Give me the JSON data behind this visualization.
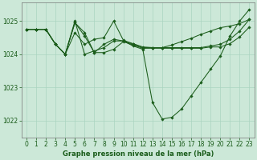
{
  "title": "Graphe pression niveau de la mer (hPa)",
  "background_color": "#cce8d8",
  "grid_color": "#aad4c0",
  "line_color": "#1a5c1a",
  "xlim": [
    -0.5,
    23.5
  ],
  "ylim": [
    1021.5,
    1025.55
  ],
  "yticks": [
    1022,
    1023,
    1024,
    1025
  ],
  "xticks": [
    0,
    1,
    2,
    3,
    4,
    5,
    6,
    7,
    8,
    9,
    10,
    11,
    12,
    13,
    14,
    15,
    16,
    17,
    18,
    19,
    20,
    21,
    22,
    23
  ],
  "series": [
    [
      1024.75,
      1024.75,
      1024.75,
      1024.3,
      1024.0,
      1025.0,
      1024.0,
      1024.1,
      1024.2,
      1024.4,
      1024.4,
      1024.25,
      1024.15,
      1022.55,
      1022.05,
      1022.1,
      1022.35,
      1022.75,
      1023.15,
      1023.55,
      1023.95,
      1024.55,
      1025.0,
      1025.35
    ],
    [
      1024.75,
      1024.75,
      1024.75,
      1024.3,
      1024.0,
      1024.95,
      1024.65,
      1024.05,
      1024.3,
      1024.45,
      1024.4,
      1024.3,
      1024.2,
      1024.2,
      1024.2,
      1024.2,
      1024.2,
      1024.2,
      1024.2,
      1024.25,
      1024.3,
      1024.45,
      1024.7,
      1025.05
    ],
    [
      1024.75,
      1024.75,
      1024.75,
      1024.3,
      1024.0,
      1024.65,
      1024.3,
      1024.45,
      1024.5,
      1025.0,
      1024.42,
      1024.32,
      1024.22,
      1024.2,
      1024.2,
      1024.28,
      1024.38,
      1024.48,
      1024.6,
      1024.7,
      1024.8,
      1024.85,
      1024.92,
      1025.05
    ],
    [
      1024.75,
      1024.75,
      1024.75,
      1024.3,
      1024.0,
      1024.95,
      1024.55,
      1024.05,
      1024.05,
      1024.15,
      1024.38,
      1024.28,
      1024.18,
      1024.18,
      1024.18,
      1024.18,
      1024.18,
      1024.18,
      1024.18,
      1024.22,
      1024.22,
      1024.32,
      1024.52,
      1024.82
    ]
  ]
}
